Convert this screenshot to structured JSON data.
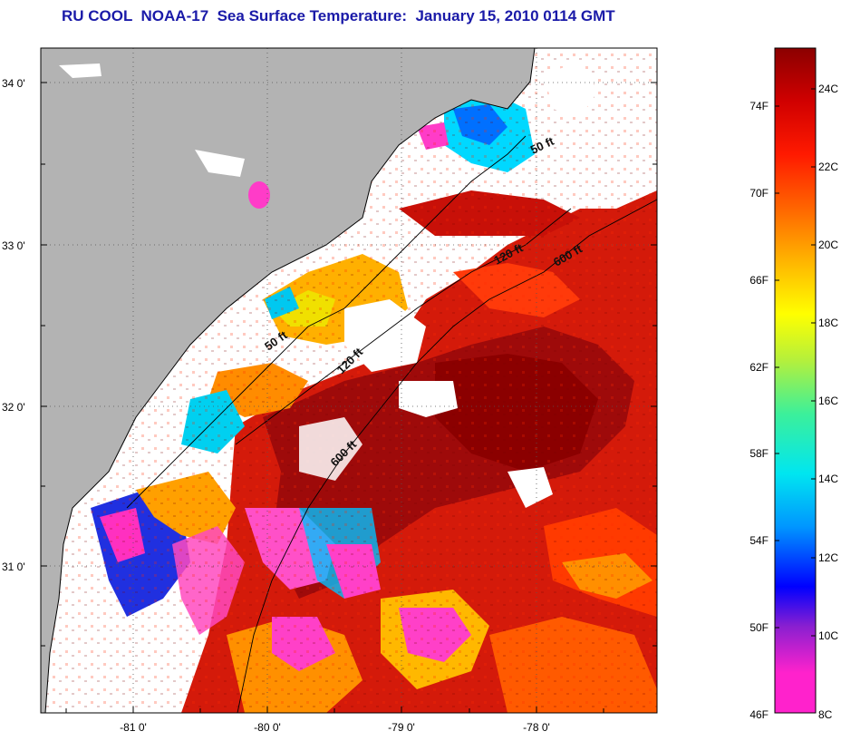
{
  "title": "RU COOL  NOAA-17  Sea Surface Temperature:  January 15, 2010 0114 GMT",
  "map": {
    "lat_ticks": [
      "34 0'",
      "33 0'",
      "32 0'",
      "31 0'"
    ],
    "lon_ticks": [
      "-81 0'",
      "-80 0'",
      "-79 0'",
      "-78 0'"
    ],
    "contours": [
      "50 ft",
      "120 ft",
      "600 ft",
      "50 ft",
      "120 ft",
      "600 ft"
    ],
    "colors": {
      "land": "#b3b3b3",
      "cloud": "#ffffff",
      "coast": "#000000"
    }
  },
  "colorbar": {
    "fahrenheit": [
      "74F",
      "70F",
      "66F",
      "62F",
      "58F",
      "54F",
      "50F",
      "46F"
    ],
    "celsius": [
      "24C",
      "22C",
      "20C",
      "18C",
      "16C",
      "14C",
      "12C",
      "10C",
      "8C"
    ],
    "gradient": [
      "#ff22cc",
      "#8a1fd0",
      "#0000ff",
      "#0096ff",
      "#00e6f0",
      "#3cf09a",
      "#b4f03c",
      "#ffff00",
      "#ffb400",
      "#ff6400",
      "#ff1a00",
      "#d00000",
      "#8b0000"
    ]
  }
}
